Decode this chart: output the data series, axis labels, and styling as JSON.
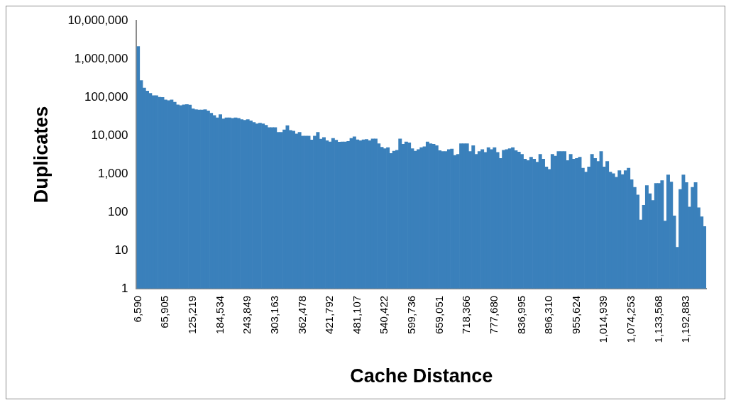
{
  "chart_data": {
    "type": "bar",
    "xlabel": "Cache Distance",
    "ylabel": "Duplicates",
    "log": "y",
    "grid": false,
    "legend": false,
    "ylim": [
      1,
      10000000
    ],
    "yticks": [
      {
        "value": 1,
        "label": "1"
      },
      {
        "value": 10,
        "label": "10"
      },
      {
        "value": 100,
        "label": "100"
      },
      {
        "value": 1000,
        "label": "1,000"
      },
      {
        "value": 10000,
        "label": "10,000"
      },
      {
        "value": 100000,
        "label": "100,000"
      },
      {
        "value": 1000000,
        "label": "1,000,000"
      },
      {
        "value": 10000000,
        "label": "10,000,000"
      }
    ],
    "categories": [
      "6,590",
      null,
      null,
      null,
      null,
      null,
      null,
      null,
      null,
      "65,905",
      null,
      null,
      null,
      null,
      null,
      null,
      null,
      null,
      "125,219",
      null,
      null,
      null,
      null,
      null,
      null,
      null,
      null,
      "184,534",
      null,
      null,
      null,
      null,
      null,
      null,
      null,
      null,
      "243,849",
      null,
      null,
      null,
      null,
      null,
      null,
      null,
      null,
      "303,163",
      null,
      null,
      null,
      null,
      null,
      null,
      null,
      null,
      "362,478",
      null,
      null,
      null,
      null,
      null,
      null,
      null,
      null,
      "421,792",
      null,
      null,
      null,
      null,
      null,
      null,
      null,
      null,
      "481,107",
      null,
      null,
      null,
      null,
      null,
      null,
      null,
      null,
      "540,422",
      null,
      null,
      null,
      null,
      null,
      null,
      null,
      null,
      "599,736",
      null,
      null,
      null,
      null,
      null,
      null,
      null,
      null,
      "659,051",
      null,
      null,
      null,
      null,
      null,
      null,
      null,
      null,
      "718,366",
      null,
      null,
      null,
      null,
      null,
      null,
      null,
      null,
      "777,680",
      null,
      null,
      null,
      null,
      null,
      null,
      null,
      null,
      "836,995",
      null,
      null,
      null,
      null,
      null,
      null,
      null,
      null,
      "896,310",
      null,
      null,
      null,
      null,
      null,
      null,
      null,
      null,
      "955,624",
      null,
      null,
      null,
      null,
      null,
      null,
      null,
      null,
      "1,014,939",
      null,
      null,
      null,
      null,
      null,
      null,
      null,
      null,
      "1,074,253",
      null,
      null,
      null,
      null,
      null,
      null,
      null,
      null,
      "1,133,568",
      null,
      null,
      null,
      null,
      null,
      null,
      null,
      null,
      "1,192,883",
      null,
      null,
      null,
      null,
      null,
      null
    ],
    "series": [
      {
        "color": "#3a80bb",
        "values": [
          2100000,
          270000,
          174000,
          145000,
          126000,
          110000,
          110000,
          100000,
          98000,
          85000,
          81000,
          85000,
          74000,
          63000,
          60000,
          63000,
          64000,
          62000,
          50000,
          47000,
          46000,
          46000,
          47000,
          44000,
          38000,
          33000,
          29000,
          35000,
          27000,
          29000,
          29000,
          28000,
          29000,
          28000,
          26000,
          25000,
          26000,
          24000,
          22000,
          20000,
          21000,
          20000,
          18500,
          16000,
          16000,
          16000,
          12000,
          12000,
          14000,
          18000,
          13500,
          13000,
          11000,
          12000,
          9600,
          9600,
          9600,
          7600,
          9600,
          12000,
          8000,
          8800,
          7300,
          6800,
          8400,
          7500,
          6700,
          6800,
          6800,
          7000,
          8400,
          9200,
          7700,
          7300,
          7700,
          7900,
          7300,
          8100,
          8100,
          6100,
          4900,
          4500,
          4800,
          3400,
          3900,
          4100,
          8100,
          5900,
          6800,
          6400,
          4500,
          3900,
          4300,
          4800,
          5100,
          6800,
          6100,
          5900,
          5400,
          4000,
          3800,
          3800,
          4300,
          4400,
          3000,
          3200,
          6100,
          6100,
          6100,
          3800,
          5400,
          3200,
          3800,
          4300,
          3600,
          4800,
          4300,
          4800,
          3600,
          2500,
          4100,
          4300,
          4500,
          4800,
          4000,
          3700,
          3200,
          2400,
          2200,
          2700,
          2400,
          2000,
          3200,
          2400,
          1500,
          1300,
          3200,
          2900,
          3800,
          3800,
          3800,
          2200,
          3200,
          2400,
          2500,
          2700,
          1400,
          1100,
          1500,
          3200,
          2500,
          2100,
          3800,
          1500,
          2100,
          1100,
          1000,
          810,
          1200,
          950,
          1200,
          1400,
          700,
          440,
          280,
          62,
          150,
          490,
          300,
          200,
          560,
          560,
          660,
          58,
          930,
          610,
          79,
          12,
          390,
          930,
          590,
          135,
          440,
          590,
          130,
          75,
          42
        ]
      }
    ]
  }
}
